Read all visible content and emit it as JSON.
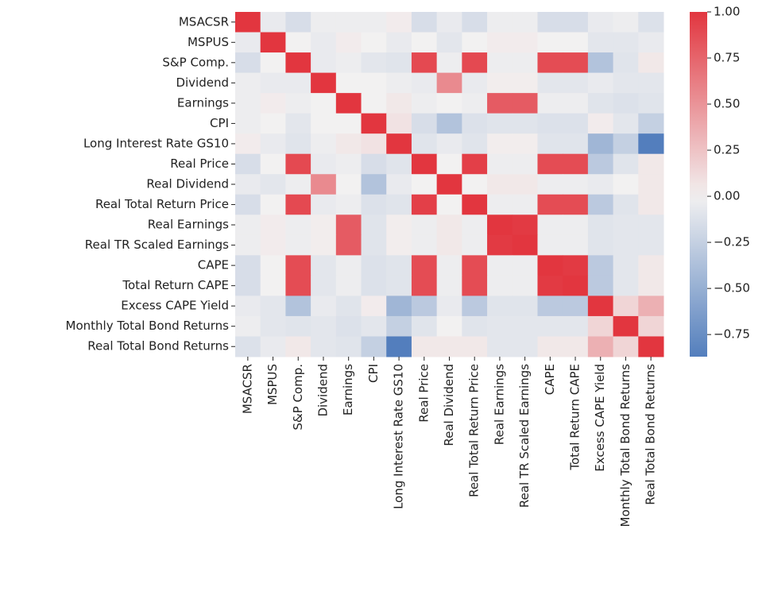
{
  "chart_data": {
    "type": "heatmap",
    "categories": [
      "MSACSR",
      "MSPUS",
      "S&P Comp.",
      "Dividend",
      "Earnings",
      "CPI",
      "Long Interest Rate GS10",
      "Real Price",
      "Real Dividend",
      "Real Total Return Price",
      "Real Earnings",
      "Real TR Scaled Earnings",
      "CAPE",
      "Total Return CAPE",
      "Excess CAPE Yield",
      "Monthly Total Bond Returns",
      "Real Total Bond Returns"
    ],
    "values": [
      [
        1,
        -0.05,
        -0.15,
        -0.03,
        -0.03,
        -0.03,
        0.03,
        -0.15,
        -0.05,
        -0.15,
        -0.03,
        -0.03,
        -0.15,
        -0.15,
        -0.05,
        -0.03,
        -0.12
      ],
      [
        -0.05,
        1,
        0.0,
        -0.05,
        0.03,
        0.0,
        -0.05,
        0.0,
        -0.08,
        0.0,
        0.03,
        0.03,
        0.0,
        0.0,
        -0.08,
        -0.08,
        -0.05
      ],
      [
        -0.15,
        0.0,
        1,
        -0.05,
        -0.03,
        -0.08,
        -0.1,
        0.9,
        -0.03,
        0.9,
        -0.03,
        -0.03,
        0.88,
        0.88,
        -0.35,
        -0.1,
        0.05
      ],
      [
        -0.03,
        -0.05,
        -0.05,
        1,
        0.0,
        0.0,
        -0.03,
        -0.05,
        0.55,
        -0.05,
        0.02,
        0.02,
        -0.08,
        -0.08,
        -0.05,
        -0.08,
        -0.08
      ],
      [
        -0.03,
        0.03,
        -0.03,
        0.0,
        1,
        0.0,
        0.05,
        -0.03,
        0.0,
        -0.03,
        0.8,
        0.8,
        -0.03,
        -0.03,
        -0.1,
        -0.12,
        -0.1
      ],
      [
        -0.03,
        0.0,
        -0.08,
        0.0,
        0.0,
        1,
        0.08,
        -0.15,
        -0.35,
        -0.12,
        -0.1,
        -0.1,
        -0.12,
        -0.12,
        0.03,
        -0.08,
        -0.25
      ],
      [
        0.03,
        -0.05,
        -0.1,
        -0.03,
        0.05,
        0.08,
        1,
        -0.1,
        -0.05,
        -0.1,
        0.02,
        0.02,
        -0.1,
        -0.1,
        -0.45,
        -0.25,
        -0.87
      ],
      [
        -0.15,
        0.0,
        0.9,
        -0.05,
        -0.03,
        -0.15,
        -0.1,
        1,
        0.0,
        0.95,
        -0.03,
        -0.03,
        0.88,
        0.88,
        -0.3,
        -0.1,
        0.05
      ],
      [
        -0.05,
        -0.08,
        -0.03,
        0.55,
        0.0,
        -0.35,
        -0.05,
        0.0,
        1,
        0.0,
        0.05,
        0.05,
        -0.03,
        -0.03,
        -0.05,
        0.0,
        0.05
      ],
      [
        -0.15,
        0.0,
        0.9,
        -0.05,
        -0.03,
        -0.12,
        -0.1,
        0.95,
        0.0,
        1,
        -0.03,
        -0.03,
        0.88,
        0.88,
        -0.3,
        -0.1,
        0.05
      ],
      [
        -0.03,
        0.03,
        -0.03,
        0.02,
        0.8,
        -0.1,
        0.02,
        -0.03,
        0.05,
        -0.03,
        1,
        0.98,
        -0.03,
        -0.03,
        -0.1,
        -0.08,
        -0.08
      ],
      [
        -0.03,
        0.03,
        -0.03,
        0.02,
        0.8,
        -0.1,
        0.02,
        -0.03,
        0.05,
        -0.03,
        0.98,
        1,
        -0.03,
        -0.03,
        -0.1,
        -0.08,
        -0.08
      ],
      [
        -0.15,
        0.0,
        0.88,
        -0.08,
        -0.03,
        -0.12,
        -0.1,
        0.88,
        -0.03,
        0.88,
        -0.03,
        -0.03,
        1,
        0.98,
        -0.3,
        -0.08,
        0.05
      ],
      [
        -0.15,
        0.0,
        0.88,
        -0.08,
        -0.03,
        -0.12,
        -0.1,
        0.88,
        -0.03,
        0.88,
        -0.03,
        -0.03,
        0.98,
        1,
        -0.3,
        -0.08,
        0.05
      ],
      [
        -0.05,
        -0.08,
        -0.35,
        -0.05,
        -0.1,
        0.03,
        -0.45,
        -0.3,
        -0.05,
        -0.3,
        -0.1,
        -0.1,
        -0.3,
        -0.3,
        1,
        0.15,
        0.35
      ],
      [
        -0.03,
        -0.08,
        -0.1,
        -0.08,
        -0.12,
        -0.08,
        -0.25,
        -0.1,
        0.0,
        -0.1,
        -0.08,
        -0.08,
        -0.08,
        -0.08,
        0.15,
        1,
        0.15
      ],
      [
        -0.12,
        -0.05,
        0.05,
        -0.08,
        -0.1,
        -0.25,
        -0.87,
        0.05,
        0.05,
        0.05,
        -0.08,
        -0.08,
        0.05,
        0.05,
        0.35,
        0.15,
        1
      ]
    ],
    "clim": [
      -0.87,
      1.0
    ],
    "cticks": [
      {
        "value": -0.75,
        "label": "−0.75"
      },
      {
        "value": -0.5,
        "label": "−0.50"
      },
      {
        "value": -0.25,
        "label": "−0.25"
      },
      {
        "value": 0,
        "label": "0.00"
      },
      {
        "value": 0.25,
        "label": "0.25"
      },
      {
        "value": 0.5,
        "label": "0.50"
      },
      {
        "value": 0.75,
        "label": "0.75"
      },
      {
        "value": 1,
        "label": "1.00"
      }
    ],
    "colors": {
      "low": "#3b6db5",
      "mid": "#f2f1f1",
      "high": "#e2363f"
    }
  }
}
